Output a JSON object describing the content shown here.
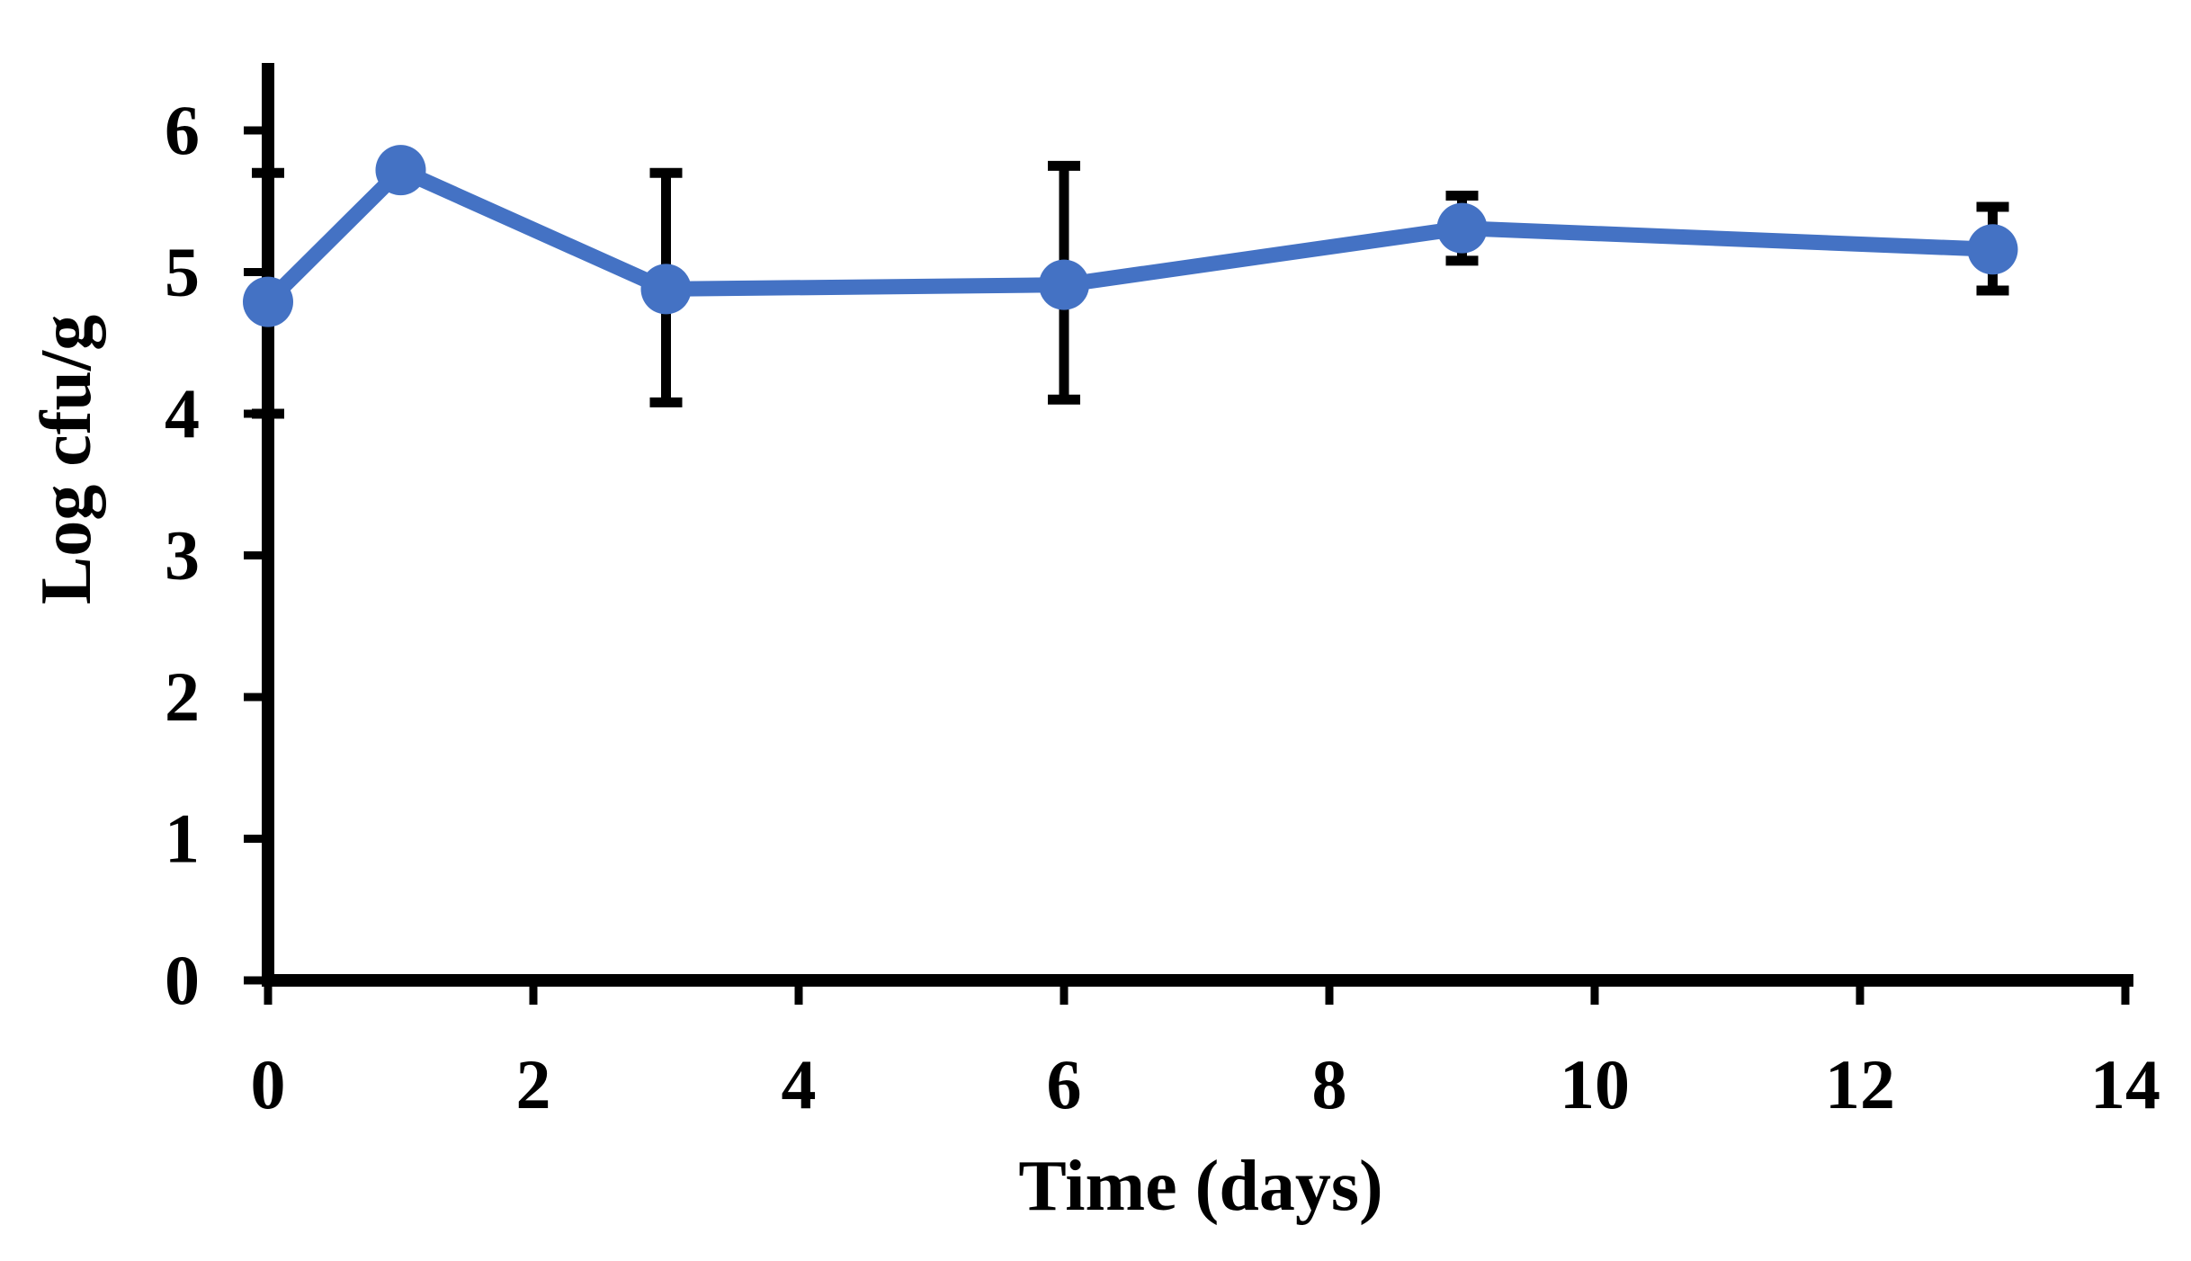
{
  "chart_data": {
    "type": "line",
    "title": "",
    "xlabel": "Time (days)",
    "ylabel": "Log cfu/g",
    "x": [
      0,
      1,
      3,
      6,
      9,
      13
    ],
    "series": [
      {
        "name": "Log cfu/g",
        "values": [
          4.79,
          5.72,
          4.88,
          4.91,
          5.31,
          5.16
        ],
        "error_upper": [
          5.7,
          null,
          5.7,
          5.75,
          5.54,
          5.46
        ],
        "error_lower": [
          4.0,
          null,
          4.08,
          4.1,
          5.08,
          4.87
        ]
      }
    ],
    "x_ticks": [
      0,
      2,
      4,
      6,
      8,
      10,
      12,
      14
    ],
    "y_ticks": [
      0,
      1,
      2,
      3,
      4,
      5,
      6
    ],
    "xlim": [
      0,
      14
    ],
    "ylim": [
      0,
      6.5
    ],
    "grid": false,
    "legend": null,
    "marker": "circle",
    "colors": {
      "series": "#4472C4",
      "error_bar": "#000000",
      "axis": "#000000",
      "background": "#FFFFFF"
    }
  }
}
